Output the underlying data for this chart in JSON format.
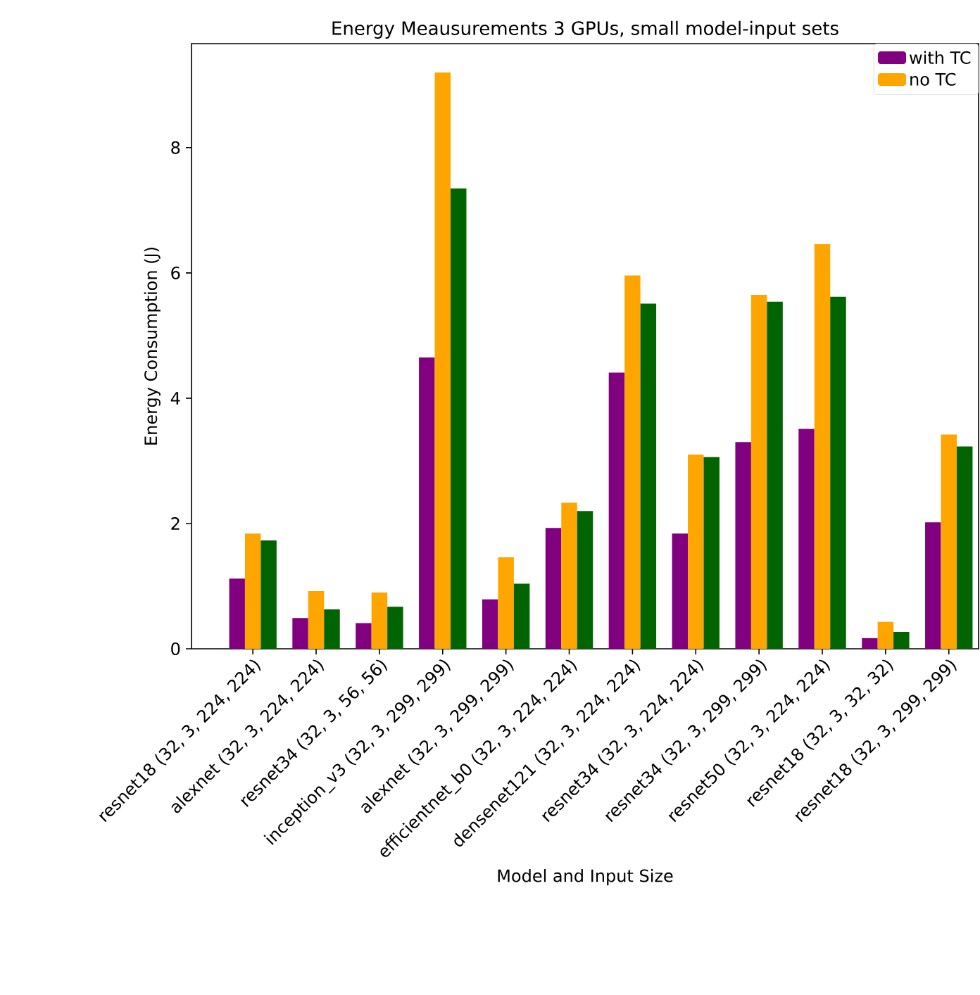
{
  "chart_data": {
    "type": "bar",
    "title": "Energy Meausurements 3 GPUs, small model-input sets",
    "xlabel": "Model and Input Size",
    "ylabel": "Energy Consumption (J)",
    "categories": [
      "resnet18 (32, 3, 224, 224)",
      "alexnet (32, 3, 224, 224)",
      "resnet34 (32, 3, 56, 56)",
      "inception_v3 (32, 3, 299, 299)",
      "alexnet (32, 3, 299, 299)",
      "efficientnet_b0 (32, 3, 224, 224)",
      "densenet121 (32, 3, 224, 224)",
      "resnet34 (32, 3, 224, 224)",
      "resnet34 (32, 3, 299, 299)",
      "resnet50 (32, 3, 224, 224)",
      "resnet18 (32, 3, 32, 32)",
      "resnet18 (32, 3, 299, 299)"
    ],
    "series": [
      {
        "name": "with TC",
        "color": "#800080",
        "values": [
          1.12,
          0.49,
          0.41,
          4.65,
          0.79,
          1.93,
          4.41,
          1.84,
          3.3,
          3.51,
          0.17,
          2.02
        ]
      },
      {
        "name": "no TC",
        "color": "#ffa500",
        "values": [
          1.84,
          0.92,
          0.9,
          9.2,
          1.46,
          2.33,
          5.96,
          3.1,
          5.65,
          6.46,
          0.43,
          3.42
        ]
      },
      {
        "color": "#006400",
        "values": [
          1.73,
          0.63,
          0.67,
          7.35,
          1.04,
          2.2,
          5.51,
          3.06,
          5.54,
          5.62,
          0.27,
          3.23
        ]
      }
    ],
    "ylim": [
      0,
      9.66
    ],
    "yticks": [
      0,
      2,
      4,
      6,
      8
    ],
    "grid": false,
    "legend": "top right"
  }
}
